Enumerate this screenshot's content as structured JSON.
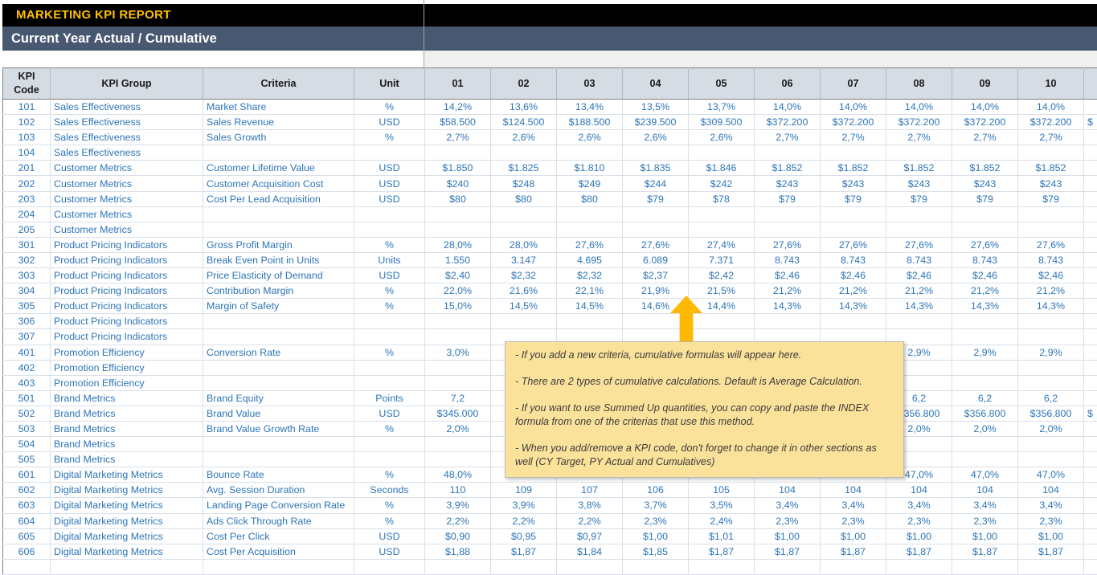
{
  "header": {
    "report_title": "MARKETING KPI REPORT",
    "section_title": "Current Year Actual / Cumulative"
  },
  "table": {
    "left_headers": [
      "KPI Code",
      "KPI Group",
      "Criteria",
      "Unit"
    ],
    "months": [
      "01",
      "02",
      "03",
      "04",
      "05",
      "06",
      "07",
      "08",
      "09",
      "10"
    ],
    "rows": [
      {
        "code": "101",
        "group": "Sales Effectiveness",
        "criteria": "Market Share",
        "unit": "%",
        "values": [
          "14,2%",
          "13,6%",
          "13,4%",
          "13,5%",
          "13,7%",
          "14,0%",
          "14,0%",
          "14,0%",
          "14,0%",
          "14,0%"
        ]
      },
      {
        "code": "102",
        "group": "Sales Effectiveness",
        "criteria": "Sales Revenue",
        "unit": "USD",
        "values": [
          "$58.500",
          "$124.500",
          "$188.500",
          "$239.500",
          "$309.500",
          "$372.200",
          "$372.200",
          "$372.200",
          "$372.200",
          "$372.200"
        ],
        "edge": "$"
      },
      {
        "code": "103",
        "group": "Sales Effectiveness",
        "criteria": "Sales Growth",
        "unit": "%",
        "values": [
          "2,7%",
          "2,6%",
          "2,6%",
          "2,6%",
          "2,6%",
          "2,7%",
          "2,7%",
          "2,7%",
          "2,7%",
          "2,7%"
        ]
      },
      {
        "code": "104",
        "group": "Sales Effectiveness",
        "criteria": "",
        "unit": "",
        "values": [
          "",
          "",
          "",
          "",
          "",
          "",
          "",
          "",
          "",
          ""
        ]
      },
      {
        "code": "201",
        "group": "Customer Metrics",
        "criteria": "Customer Lifetime Value",
        "unit": "USD",
        "values": [
          "$1.850",
          "$1.825",
          "$1.810",
          "$1.835",
          "$1.846",
          "$1.852",
          "$1.852",
          "$1.852",
          "$1.852",
          "$1.852"
        ]
      },
      {
        "code": "202",
        "group": "Customer Metrics",
        "criteria": "Customer Acquisition Cost",
        "unit": "USD",
        "values": [
          "$240",
          "$248",
          "$249",
          "$244",
          "$242",
          "$243",
          "$243",
          "$243",
          "$243",
          "$243"
        ]
      },
      {
        "code": "203",
        "group": "Customer Metrics",
        "criteria": "Cost Per Lead Acquisition",
        "unit": "USD",
        "values": [
          "$80",
          "$80",
          "$80",
          "$79",
          "$78",
          "$79",
          "$79",
          "$79",
          "$79",
          "$79"
        ]
      },
      {
        "code": "204",
        "group": "Customer Metrics",
        "criteria": "",
        "unit": "",
        "values": [
          "",
          "",
          "",
          "",
          "",
          "",
          "",
          "",
          "",
          ""
        ]
      },
      {
        "code": "205",
        "group": "Customer Metrics",
        "criteria": "",
        "unit": "",
        "values": [
          "",
          "",
          "",
          "",
          "",
          "",
          "",
          "",
          "",
          ""
        ]
      },
      {
        "code": "301",
        "group": "Product Pricing Indicators",
        "criteria": "Gross Profit Margin",
        "unit": "%",
        "values": [
          "28,0%",
          "28,0%",
          "27,6%",
          "27,6%",
          "27,4%",
          "27,6%",
          "27,6%",
          "27,6%",
          "27,6%",
          "27,6%"
        ]
      },
      {
        "code": "302",
        "group": "Product Pricing Indicators",
        "criteria": "Break Even Point in Units",
        "unit": "Units",
        "values": [
          "1.550",
          "3.147",
          "4.695",
          "6.089",
          "7.371",
          "8.743",
          "8.743",
          "8.743",
          "8.743",
          "8.743"
        ]
      },
      {
        "code": "303",
        "group": "Product Pricing Indicators",
        "criteria": "Price Elasticity of Demand",
        "unit": "USD",
        "values": [
          "$2,40",
          "$2,32",
          "$2,32",
          "$2,37",
          "$2,42",
          "$2,46",
          "$2,46",
          "$2,46",
          "$2,46",
          "$2,46"
        ]
      },
      {
        "code": "304",
        "group": "Product Pricing Indicators",
        "criteria": "Contribution Margin",
        "unit": "%",
        "values": [
          "22,0%",
          "21,6%",
          "22,1%",
          "21,9%",
          "21,5%",
          "21,2%",
          "21,2%",
          "21,2%",
          "21,2%",
          "21,2%"
        ]
      },
      {
        "code": "305",
        "group": "Product Pricing Indicators",
        "criteria": "Margin of Safety",
        "unit": "%",
        "values": [
          "15,0%",
          "14,5%",
          "14,5%",
          "14,6%",
          "14,4%",
          "14,3%",
          "14,3%",
          "14,3%",
          "14,3%",
          "14,3%"
        ]
      },
      {
        "code": "306",
        "group": "Product Pricing Indicators",
        "criteria": "",
        "unit": "",
        "values": [
          "",
          "",
          "",
          "",
          "",
          "",
          "",
          "",
          "",
          ""
        ]
      },
      {
        "code": "307",
        "group": "Product Pricing Indicators",
        "criteria": "",
        "unit": "",
        "values": [
          "",
          "",
          "",
          "",
          "",
          "",
          "",
          "",
          "",
          ""
        ]
      },
      {
        "code": "401",
        "group": "Promotion Efficiency",
        "criteria": "Conversion Rate",
        "unit": "%",
        "values": [
          "3,0%",
          "",
          "",
          "",
          "",
          "",
          "",
          "2,9%",
          "2,9%",
          "2,9%"
        ]
      },
      {
        "code": "402",
        "group": "Promotion Efficiency",
        "criteria": "",
        "unit": "",
        "values": [
          "",
          "",
          "",
          "",
          "",
          "",
          "",
          "",
          "",
          ""
        ]
      },
      {
        "code": "403",
        "group": "Promotion Efficiency",
        "criteria": "",
        "unit": "",
        "values": [
          "",
          "",
          "",
          "",
          "",
          "",
          "",
          "",
          "",
          ""
        ]
      },
      {
        "code": "501",
        "group": "Brand Metrics",
        "criteria": "Brand Equity",
        "unit": "Points",
        "values": [
          "7,2",
          "",
          "",
          "",
          "",
          "",
          "",
          "6,2",
          "6,2",
          "6,2"
        ]
      },
      {
        "code": "502",
        "group": "Brand Metrics",
        "criteria": "Brand Value",
        "unit": "USD",
        "values": [
          "$345.000",
          "",
          "",
          "",
          "",
          "",
          "",
          "$356.800",
          "$356.800",
          "$356.800"
        ],
        "edge": "$"
      },
      {
        "code": "503",
        "group": "Brand Metrics",
        "criteria": "Brand Value Growth Rate",
        "unit": "%",
        "values": [
          "2,0%",
          "",
          "",
          "",
          "",
          "",
          "",
          "2,0%",
          "2,0%",
          "2,0%"
        ]
      },
      {
        "code": "504",
        "group": "Brand Metrics",
        "criteria": "",
        "unit": "",
        "values": [
          "",
          "",
          "",
          "",
          "",
          "",
          "",
          "",
          "",
          ""
        ]
      },
      {
        "code": "505",
        "group": "Brand Metrics",
        "criteria": "",
        "unit": "",
        "values": [
          "",
          "",
          "",
          "",
          "",
          "",
          "",
          "",
          "",
          ""
        ]
      },
      {
        "code": "601",
        "group": "Digital Marketing Metrics",
        "criteria": "Bounce Rate",
        "unit": "%",
        "values": [
          "48,0%",
          "",
          "",
          "",
          "",
          "",
          "",
          "47,0%",
          "47,0%",
          "47,0%"
        ]
      },
      {
        "code": "602",
        "group": "Digital Marketing Metrics",
        "criteria": "Avg. Session Duration",
        "unit": "Seconds",
        "values": [
          "110",
          "109",
          "107",
          "106",
          "105",
          "104",
          "104",
          "104",
          "104",
          "104"
        ]
      },
      {
        "code": "603",
        "group": "Digital Marketing Metrics",
        "criteria": "Landing Page Conversion Rate",
        "unit": "%",
        "values": [
          "3,9%",
          "3,9%",
          "3,8%",
          "3,7%",
          "3,5%",
          "3,4%",
          "3,4%",
          "3,4%",
          "3,4%",
          "3,4%"
        ]
      },
      {
        "code": "604",
        "group": "Digital Marketing Metrics",
        "criteria": "Ads Click Through Rate",
        "unit": "%",
        "values": [
          "2,2%",
          "2,2%",
          "2,2%",
          "2,3%",
          "2,4%",
          "2,3%",
          "2,3%",
          "2,3%",
          "2,3%",
          "2,3%"
        ]
      },
      {
        "code": "605",
        "group": "Digital Marketing Metrics",
        "criteria": "Cost Per Click",
        "unit": "USD",
        "values": [
          "$0,90",
          "$0,95",
          "$0,97",
          "$1,00",
          "$1,01",
          "$1,00",
          "$1,00",
          "$1,00",
          "$1,00",
          "$1,00"
        ]
      },
      {
        "code": "606",
        "group": "Digital Marketing Metrics",
        "criteria": "Cost Per Acquisition",
        "unit": "USD",
        "values": [
          "$1,88",
          "$1,87",
          "$1,84",
          "$1,85",
          "$1,87",
          "$1,87",
          "$1,87",
          "$1,87",
          "$1,87",
          "$1,87"
        ]
      }
    ]
  },
  "note": {
    "lines": [
      "- If you add a new criteria, cumulative formulas will appear here.",
      "- There are 2 types of cumulative calculations. Default is Average Calculation.",
      "- If you want to use Summed Up quantities, you can copy and paste the INDEX formula from one of the criterias that use this method.",
      "- When you add/remove a KPI code, don't forget to change it in other sections as well (CY Target, PY Actual and Cumulatives)"
    ]
  },
  "colors": {
    "title_bar_bg": "#000000",
    "title_text": "#FFC000",
    "section_bar_bg": "#485870",
    "section_text": "#FFFFFF",
    "header_row_bg": "#D6DCE4",
    "data_text": "#2E75B6",
    "gridline": "#D9DFE8",
    "note_bg": "#FBE29B",
    "arrow": "#FFB900"
  }
}
